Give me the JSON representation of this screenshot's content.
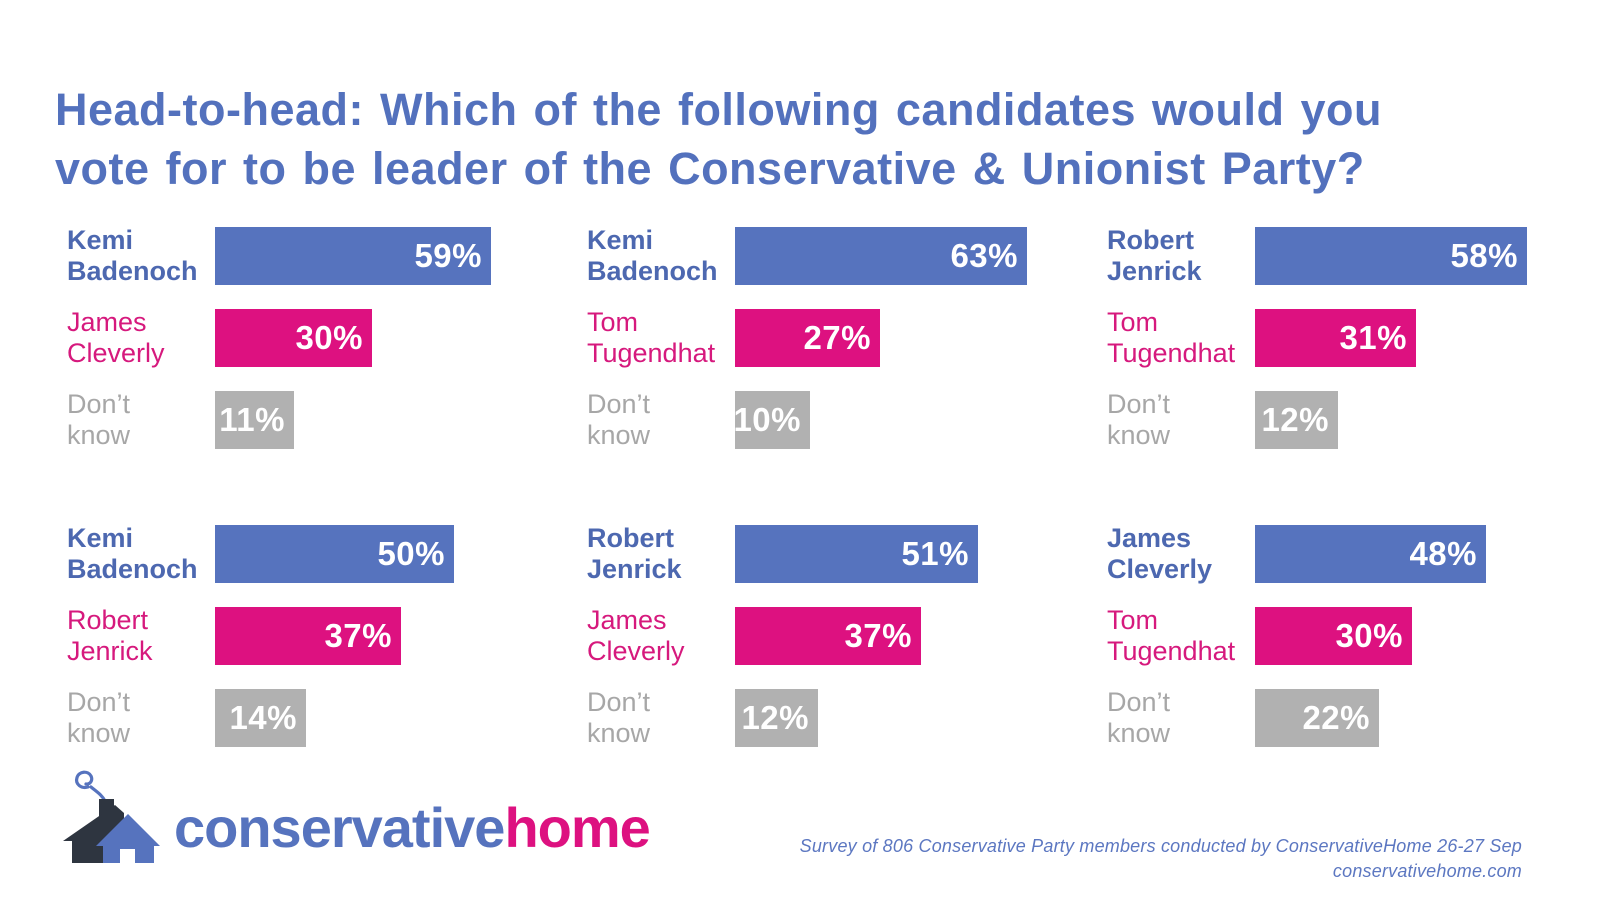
{
  "header": {
    "line1": "Head-to-head: Which of the following candidates would you",
    "line2": "vote for to be leader of the Conservative & Unionist Party?"
  },
  "colors": {
    "title": "#5371BD",
    "bar_blue": "#5673BE",
    "bar_pink": "#DD1180",
    "bar_gray": "#B1B1B1",
    "label_blue": "#4D68B0",
    "label_pink": "#D6197D",
    "label_gray": "#A7A7A7",
    "value_text": "#FFFFFF",
    "footer_text": "#5C77C1",
    "logo_conservative": "#5673BE",
    "logo_home": "#DD1180",
    "logo_house_dark": "#2E3540",
    "logo_house_blue": "#5673BE",
    "background": "#FFFFFF"
  },
  "chart_data": {
    "type": "bar",
    "orientation": "horizontal",
    "unit": "%",
    "value_range": [
      0,
      100
    ],
    "grid": "off",
    "title": "Head-to-head: Which of the following candidates would you vote for to be leader of the Conservative & Unionist Party?",
    "charts": [
      {
        "position": "top-left",
        "bars": [
          {
            "label": "Kemi Badenoch",
            "value": 59,
            "role": "winner"
          },
          {
            "label": "James Cleverly",
            "value": 30,
            "role": "runner_up"
          },
          {
            "label": "Don’t know",
            "value": 11,
            "role": "dont_know"
          }
        ]
      },
      {
        "position": "top-middle",
        "bars": [
          {
            "label": "Kemi Badenoch",
            "value": 63,
            "role": "winner"
          },
          {
            "label": "Tom Tugendhat",
            "value": 27,
            "role": "runner_up"
          },
          {
            "label": "Don’t know",
            "value": 10,
            "role": "dont_know"
          }
        ]
      },
      {
        "position": "top-right",
        "bars": [
          {
            "label": "Robert Jenrick",
            "value": 58,
            "role": "winner"
          },
          {
            "label": "Tom Tugendhat",
            "value": 31,
            "role": "runner_up"
          },
          {
            "label": "Don’t know",
            "value": 12,
            "role": "dont_know"
          }
        ]
      },
      {
        "position": "bottom-left",
        "bars": [
          {
            "label": "Kemi Badenoch",
            "value": 50,
            "role": "winner"
          },
          {
            "label": "Robert Jenrick",
            "value": 37,
            "role": "runner_up"
          },
          {
            "label": "Don’t know",
            "value": 14,
            "role": "dont_know"
          }
        ]
      },
      {
        "position": "bottom-middle",
        "bars": [
          {
            "label": "Robert Jenrick",
            "value": 51,
            "role": "winner"
          },
          {
            "label": "James Cleverly",
            "value": 37,
            "role": "runner_up"
          },
          {
            "label": "Don’t know",
            "value": 12,
            "role": "dont_know"
          }
        ]
      },
      {
        "position": "bottom-right",
        "bars": [
          {
            "label": "James Cleverly",
            "value": 48,
            "role": "winner"
          },
          {
            "label": "Tom Tugendhat",
            "value": 30,
            "role": "runner_up"
          },
          {
            "label": "Don’t know",
            "value": 22,
            "role": "dont_know"
          }
        ]
      }
    ]
  },
  "footer": {
    "logo_conservative": "conservative",
    "logo_home": "home",
    "logo_icon": "house-with-chimney-smoke",
    "source_line1": "Survey of 806 Conservative Party members conducted by ConservativeHome 26-27 Sep",
    "source_line2": "conservativehome.com"
  }
}
